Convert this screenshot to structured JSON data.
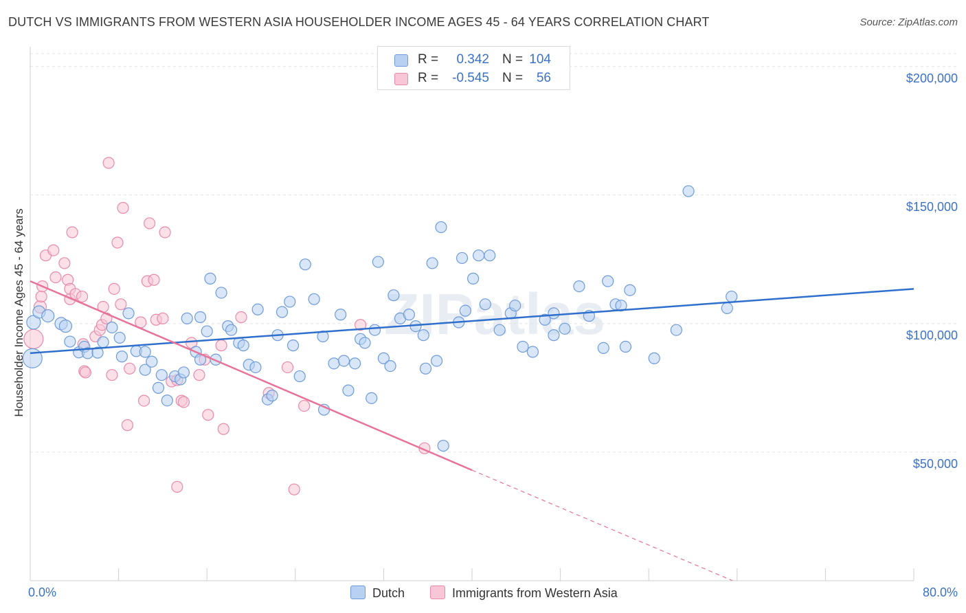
{
  "title": "DUTCH VS IMMIGRANTS FROM WESTERN ASIA HOUSEHOLDER INCOME AGES 45 - 64 YEARS CORRELATION CHART",
  "source": "Source: ZipAtlas.com",
  "watermark": "ZIPatlas",
  "stats": [
    {
      "r_label": "R =",
      "r_value": "0.342",
      "n_label": "N =",
      "n_value": "104",
      "color": "#b8d1f3",
      "border": "#6e9bd8"
    },
    {
      "r_label": "R =",
      "r_value": "-0.545",
      "n_label": "N =",
      "n_value": "56",
      "color": "#f8c6d6",
      "border": "#e88aab"
    }
  ],
  "legend": {
    "dutch": "Dutch",
    "immigrants": "Immigrants from Western Asia"
  },
  "colors": {
    "dutch_fill": "#b8d1f3",
    "dutch_stroke": "#6e9bd8",
    "dutch_line": "#2f6fcc",
    "imm_fill": "#f8c6d6",
    "imm_stroke": "#e88aab",
    "imm_line": "#e8729a",
    "axis_label": "#3b72c4",
    "grid": "#e3e3e3"
  },
  "chart_data": {
    "type": "scatter",
    "title": "DUTCH VS IMMIGRANTS FROM WESTERN ASIA HOUSEHOLDER INCOME AGES 45 - 64 YEARS CORRELATION CHART",
    "xlabel": "",
    "ylabel": "Householder Income Ages 45 - 64 years",
    "xlim": [
      0,
      80
    ],
    "ylim": [
      0,
      205000
    ],
    "x_tick_labels": [
      "0.0%",
      "80.0%"
    ],
    "y_ticks": [
      50000,
      100000,
      150000,
      200000
    ],
    "y_tick_labels": [
      "$50,000",
      "$100,000",
      "$150,000",
      "$200,000"
    ],
    "grid": "horizontal dashed",
    "legend_position": "bottom",
    "series": [
      {
        "name": "Dutch",
        "trend": {
          "x": [
            0,
            80
          ],
          "y": [
            88500,
            113500
          ]
        },
        "points": [
          [
            0.2,
            86500,
            14
          ],
          [
            0.3,
            100500,
            10
          ],
          [
            0.8,
            104500,
            9
          ],
          [
            1.6,
            103000,
            9
          ],
          [
            2.8,
            100000,
            9
          ],
          [
            3.2,
            99000,
            9
          ],
          [
            3.6,
            93000,
            8
          ],
          [
            4.4,
            88800,
            8
          ],
          [
            4.9,
            91000,
            8
          ],
          [
            5.2,
            88500,
            8
          ],
          [
            6.1,
            88700,
            8
          ],
          [
            6.6,
            92800,
            8
          ],
          [
            7.4,
            98500,
            8
          ],
          [
            8.1,
            94500,
            8
          ],
          [
            8.3,
            87200,
            8
          ],
          [
            8.9,
            104000,
            8
          ],
          [
            9.6,
            89300,
            8
          ],
          [
            10.4,
            82000,
            8
          ],
          [
            10.4,
            89000,
            8
          ],
          [
            11.0,
            85200,
            8
          ],
          [
            11.6,
            75000,
            8
          ],
          [
            11.9,
            80000,
            8
          ],
          [
            12.4,
            70100,
            8
          ],
          [
            13.1,
            79500,
            8
          ],
          [
            13.6,
            78300,
            8
          ],
          [
            13.9,
            81000,
            8
          ],
          [
            14.2,
            102000,
            8
          ],
          [
            15.0,
            89000,
            8
          ],
          [
            15.4,
            86000,
            8
          ],
          [
            15.4,
            102500,
            8
          ],
          [
            16.0,
            97000,
            8
          ],
          [
            16.3,
            117500,
            8
          ],
          [
            16.8,
            86000,
            8
          ],
          [
            17.3,
            112000,
            8
          ],
          [
            17.9,
            99000,
            8
          ],
          [
            18.2,
            97500,
            8
          ],
          [
            18.9,
            92500,
            8
          ],
          [
            19.3,
            91500,
            8
          ],
          [
            19.8,
            84000,
            8
          ],
          [
            20.4,
            83000,
            8
          ],
          [
            20.6,
            105500,
            8
          ],
          [
            21.5,
            70500,
            8
          ],
          [
            21.9,
            72000,
            8
          ],
          [
            22.4,
            95500,
            8
          ],
          [
            22.8,
            104500,
            8
          ],
          [
            23.5,
            108500,
            8
          ],
          [
            23.8,
            91500,
            8
          ],
          [
            24.4,
            79500,
            8
          ],
          [
            24.9,
            123000,
            8
          ],
          [
            25.7,
            109500,
            8
          ],
          [
            26.5,
            95000,
            8
          ],
          [
            26.6,
            66500,
            8
          ],
          [
            27.5,
            84500,
            8
          ],
          [
            28.1,
            103500,
            8
          ],
          [
            28.4,
            85500,
            8
          ],
          [
            28.8,
            74000,
            8
          ],
          [
            29.4,
            84500,
            8
          ],
          [
            29.9,
            94000,
            8
          ],
          [
            30.3,
            92500,
            8
          ],
          [
            30.9,
            71000,
            8
          ],
          [
            31.2,
            97500,
            8
          ],
          [
            31.5,
            124000,
            8
          ],
          [
            32.0,
            86500,
            8
          ],
          [
            32.6,
            83500,
            8
          ],
          [
            32.9,
            111000,
            8
          ],
          [
            33.5,
            102000,
            8
          ],
          [
            34.3,
            103500,
            8
          ],
          [
            34.9,
            99000,
            8
          ],
          [
            35.6,
            95500,
            8
          ],
          [
            35.8,
            82500,
            8
          ],
          [
            36.4,
            123500,
            8
          ],
          [
            36.8,
            85500,
            8
          ],
          [
            37.2,
            137500,
            8
          ],
          [
            37.4,
            52500,
            8
          ],
          [
            38.8,
            100500,
            8
          ],
          [
            39.1,
            125500,
            8
          ],
          [
            39.4,
            105000,
            8
          ],
          [
            40.1,
            117500,
            8
          ],
          [
            40.6,
            126500,
            8
          ],
          [
            41.2,
            107500,
            8
          ],
          [
            41.6,
            126500,
            8
          ],
          [
            42.5,
            97500,
            8
          ],
          [
            43.5,
            104000,
            8
          ],
          [
            43.9,
            107000,
            8
          ],
          [
            44.6,
            91000,
            8
          ],
          [
            45.5,
            89000,
            8
          ],
          [
            46.6,
            101500,
            8
          ],
          [
            47.4,
            104000,
            8
          ],
          [
            47.4,
            95500,
            8
          ],
          [
            48.4,
            98000,
            8
          ],
          [
            49.7,
            114500,
            8
          ],
          [
            50.6,
            103000,
            8
          ],
          [
            51.9,
            90500,
            8
          ],
          [
            52.3,
            116500,
            8
          ],
          [
            53.0,
            107500,
            8
          ],
          [
            53.5,
            107000,
            8
          ],
          [
            53.9,
            91000,
            8
          ],
          [
            54.3,
            113000,
            8
          ],
          [
            56.5,
            86500,
            8
          ],
          [
            58.5,
            97500,
            8
          ],
          [
            59.6,
            151500,
            8
          ],
          [
            63.1,
            106000,
            8
          ],
          [
            63.5,
            110500,
            8
          ]
        ]
      },
      {
        "name": "Immigrants from Western Asia",
        "trend": {
          "x": [
            0,
            40
          ],
          "y": [
            116500,
            43000
          ],
          "dashed_x": [
            40,
            63.6
          ],
          "dashed_y": [
            43000,
            0
          ]
        },
        "points": [
          [
            0.3,
            94000,
            14
          ],
          [
            0.9,
            106500,
            9
          ],
          [
            1.0,
            110500,
            8
          ],
          [
            1.1,
            114500,
            8
          ],
          [
            1.4,
            126500,
            8
          ],
          [
            2.1,
            128500,
            8
          ],
          [
            2.3,
            118000,
            8
          ],
          [
            3.1,
            123500,
            8
          ],
          [
            3.4,
            117000,
            8
          ],
          [
            3.6,
            113500,
            8
          ],
          [
            3.6,
            109500,
            8
          ],
          [
            3.8,
            135500,
            8
          ],
          [
            4.1,
            111500,
            8
          ],
          [
            4.7,
            110500,
            8
          ],
          [
            4.8,
            92000,
            8
          ],
          [
            4.9,
            81500,
            8
          ],
          [
            5.0,
            81000,
            8
          ],
          [
            5.9,
            95000,
            8
          ],
          [
            6.3,
            97500,
            8
          ],
          [
            6.5,
            99500,
            8
          ],
          [
            6.6,
            106500,
            8
          ],
          [
            6.9,
            102000,
            8
          ],
          [
            7.1,
            162500,
            8
          ],
          [
            7.4,
            80000,
            8
          ],
          [
            7.6,
            113500,
            8
          ],
          [
            7.9,
            131500,
            8
          ],
          [
            8.2,
            107500,
            8
          ],
          [
            8.4,
            145000,
            8
          ],
          [
            8.8,
            60500,
            8
          ],
          [
            9.0,
            82500,
            8
          ],
          [
            10.0,
            100500,
            8
          ],
          [
            10.3,
            70000,
            8
          ],
          [
            10.6,
            116500,
            8
          ],
          [
            10.8,
            139000,
            8
          ],
          [
            11.2,
            117000,
            8
          ],
          [
            11.4,
            101500,
            8
          ],
          [
            12.0,
            102000,
            8
          ],
          [
            12.2,
            135500,
            8
          ],
          [
            12.8,
            77500,
            8
          ],
          [
            13.3,
            36500,
            8
          ],
          [
            13.3,
            78000,
            8
          ],
          [
            13.7,
            70000,
            8
          ],
          [
            13.9,
            69500,
            8
          ],
          [
            14.6,
            92500,
            8
          ],
          [
            15.3,
            80000,
            8
          ],
          [
            15.8,
            86000,
            8
          ],
          [
            16.1,
            64500,
            8
          ],
          [
            17.3,
            91500,
            8
          ],
          [
            17.5,
            59000,
            8
          ],
          [
            19.1,
            102500,
            8
          ],
          [
            21.6,
            73000,
            8
          ],
          [
            23.3,
            83000,
            8
          ],
          [
            23.9,
            35500,
            8
          ],
          [
            24.8,
            68000,
            8
          ],
          [
            29.9,
            99500,
            8
          ],
          [
            35.7,
            51500,
            8
          ]
        ]
      }
    ]
  }
}
